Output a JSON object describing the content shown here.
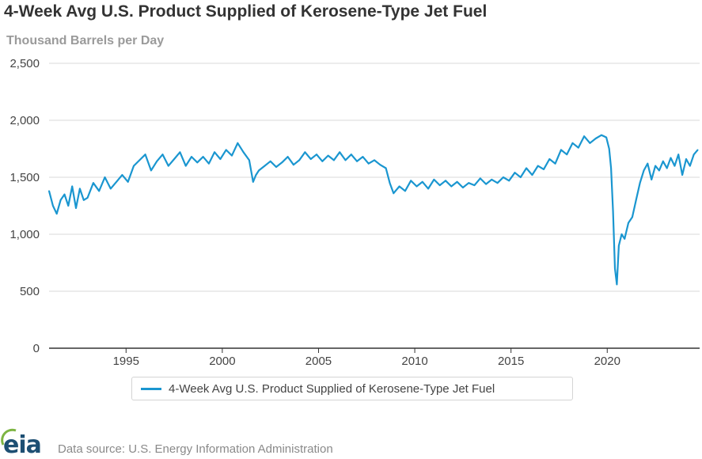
{
  "chart_data": {
    "type": "line",
    "title": "4-Week Avg U.S. Product Supplied of Kerosene-Type Jet Fuel",
    "ylabel": "Thousand Barrels per Day",
    "xlabel": "",
    "ylim": [
      0,
      2500
    ],
    "xlim": [
      1991.0,
      2024.8
    ],
    "y_ticks": [
      0,
      500,
      1000,
      1500,
      2000,
      2500
    ],
    "y_tick_labels": [
      "0",
      "500",
      "1,000",
      "1,500",
      "2,000",
      "2,500"
    ],
    "x_ticks": [
      1995,
      2000,
      2005,
      2010,
      2015,
      2020
    ],
    "x_tick_labels": [
      "1995",
      "2000",
      "2005",
      "2010",
      "2015",
      "2020"
    ],
    "grid": true,
    "legend_position": "bottom",
    "series": [
      {
        "name": "4-Week Avg U.S. Product Supplied of Kerosene-Type Jet Fuel",
        "color": "#1a96d0",
        "x": [
          1991.0,
          1991.2,
          1991.4,
          1991.6,
          1991.8,
          1992.0,
          1992.2,
          1992.4,
          1992.6,
          1992.8,
          1993.0,
          1993.3,
          1993.6,
          1993.9,
          1994.2,
          1994.5,
          1994.8,
          1995.1,
          1995.4,
          1995.7,
          1996.0,
          1996.3,
          1996.6,
          1996.9,
          1997.2,
          1997.5,
          1997.8,
          1998.1,
          1998.4,
          1998.7,
          1999.0,
          1999.3,
          1999.6,
          1999.9,
          2000.2,
          2000.5,
          2000.8,
          2001.1,
          2001.4,
          2001.6,
          2001.75,
          2001.9,
          2002.2,
          2002.5,
          2002.8,
          2003.1,
          2003.4,
          2003.7,
          2004.0,
          2004.3,
          2004.6,
          2004.9,
          2005.2,
          2005.5,
          2005.8,
          2006.1,
          2006.4,
          2006.7,
          2007.0,
          2007.3,
          2007.6,
          2007.9,
          2008.2,
          2008.5,
          2008.7,
          2008.9,
          2009.2,
          2009.5,
          2009.8,
          2010.1,
          2010.4,
          2010.7,
          2011.0,
          2011.3,
          2011.6,
          2011.9,
          2012.2,
          2012.5,
          2012.8,
          2013.1,
          2013.4,
          2013.7,
          2014.0,
          2014.3,
          2014.6,
          2014.9,
          2015.2,
          2015.5,
          2015.8,
          2016.1,
          2016.4,
          2016.7,
          2017.0,
          2017.3,
          2017.6,
          2017.9,
          2018.2,
          2018.5,
          2018.8,
          2019.1,
          2019.4,
          2019.7,
          2019.95,
          2020.1,
          2020.2,
          2020.3,
          2020.4,
          2020.5,
          2020.6,
          2020.75,
          2020.9,
          2021.1,
          2021.3,
          2021.5,
          2021.7,
          2021.9,
          2022.1,
          2022.3,
          2022.5,
          2022.7,
          2022.9,
          2023.1,
          2023.3,
          2023.5,
          2023.7,
          2023.9,
          2024.1,
          2024.3,
          2024.5,
          2024.7
        ],
        "values": [
          1380,
          1250,
          1180,
          1300,
          1350,
          1250,
          1420,
          1230,
          1400,
          1300,
          1320,
          1450,
          1380,
          1500,
          1400,
          1460,
          1520,
          1460,
          1600,
          1650,
          1700,
          1560,
          1640,
          1700,
          1600,
          1660,
          1720,
          1600,
          1680,
          1630,
          1680,
          1620,
          1720,
          1660,
          1740,
          1690,
          1800,
          1720,
          1650,
          1460,
          1520,
          1560,
          1600,
          1640,
          1590,
          1630,
          1680,
          1610,
          1650,
          1720,
          1660,
          1700,
          1640,
          1690,
          1650,
          1720,
          1650,
          1700,
          1640,
          1680,
          1620,
          1650,
          1610,
          1580,
          1450,
          1360,
          1420,
          1380,
          1470,
          1420,
          1460,
          1400,
          1480,
          1430,
          1470,
          1420,
          1460,
          1410,
          1450,
          1430,
          1490,
          1440,
          1480,
          1450,
          1500,
          1470,
          1540,
          1500,
          1580,
          1520,
          1600,
          1570,
          1660,
          1620,
          1740,
          1700,
          1800,
          1760,
          1860,
          1800,
          1840,
          1870,
          1850,
          1750,
          1580,
          1200,
          700,
          560,
          900,
          1000,
          960,
          1100,
          1150,
          1300,
          1450,
          1560,
          1620,
          1480,
          1600,
          1560,
          1640,
          1580,
          1670,
          1600,
          1700,
          1520,
          1660,
          1600,
          1700,
          1740
        ]
      }
    ]
  },
  "legend": {
    "label": "4-Week Avg U.S. Product Supplied of Kerosene-Type Jet Fuel"
  },
  "footer": {
    "logo_text": "eia",
    "source": "Data source: U.S. Energy Information Administration"
  },
  "colors": {
    "line": "#1a96d0",
    "grid": "#d8d8d8",
    "axis": "#333333",
    "logo": "#1d4f73"
  }
}
